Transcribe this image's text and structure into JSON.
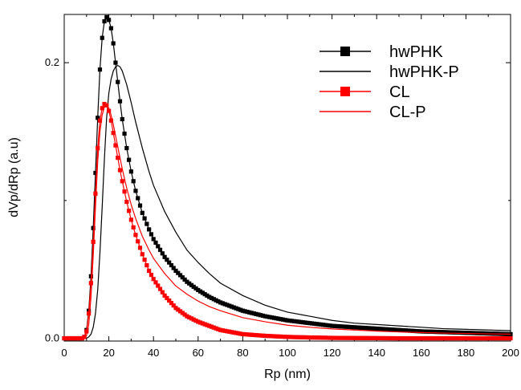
{
  "chart_data": {
    "type": "scatter",
    "title": "",
    "xlabel": "Rp (nm)",
    "ylabel": "dVp/dRp (a.u)",
    "xlim": [
      0,
      200
    ],
    "ylim": [
      -0.002,
      0.235
    ],
    "x_ticks": [
      0,
      20,
      40,
      60,
      80,
      100,
      120,
      140,
      160,
      180,
      200
    ],
    "y_ticks": [
      0.0,
      0.2
    ],
    "x_tick_labels": [
      "0",
      "20",
      "40",
      "60",
      "80",
      "100",
      "120",
      "140",
      "160",
      "180",
      "200"
    ],
    "y_tick_labels": [
      "0.0",
      "0.2"
    ],
    "grid": false,
    "legend_position": "top-right",
    "x": [
      0,
      2,
      4,
      6,
      8,
      9,
      10,
      11,
      12,
      13,
      14,
      15,
      16,
      17,
      18,
      19,
      20,
      21,
      22,
      23,
      24,
      25,
      26,
      28,
      30,
      32,
      35,
      38,
      40,
      45,
      50,
      55,
      60,
      65,
      70,
      80,
      90,
      100,
      110,
      120,
      130,
      140,
      150,
      160,
      170,
      180,
      190,
      200
    ],
    "series": [
      {
        "name": "hwPHK",
        "style": "line-square-markers",
        "color": "#000000",
        "values": [
          0,
          0,
          0,
          0,
          0,
          0.001,
          0.006,
          0.02,
          0.045,
          0.08,
          0.12,
          0.16,
          0.195,
          0.218,
          0.23,
          0.233,
          0.231,
          0.225,
          0.214,
          0.2,
          0.186,
          0.172,
          0.159,
          0.138,
          0.121,
          0.107,
          0.091,
          0.079,
          0.072,
          0.059,
          0.049,
          0.041,
          0.035,
          0.03,
          0.026,
          0.02,
          0.016,
          0.013,
          0.011,
          0.009,
          0.008,
          0.007,
          0.006,
          0.005,
          0.0045,
          0.004,
          0.0035,
          0.003
        ]
      },
      {
        "name": "hwPHK-P",
        "style": "line",
        "color": "#000000",
        "values": [
          0,
          0,
          0,
          0,
          0,
          0,
          0,
          0.001,
          0.003,
          0.008,
          0.018,
          0.035,
          0.062,
          0.095,
          0.13,
          0.16,
          0.178,
          0.188,
          0.194,
          0.197,
          0.198,
          0.197,
          0.194,
          0.184,
          0.171,
          0.157,
          0.138,
          0.121,
          0.111,
          0.092,
          0.077,
          0.064,
          0.055,
          0.047,
          0.04,
          0.031,
          0.024,
          0.019,
          0.016,
          0.013,
          0.011,
          0.01,
          0.009,
          0.008,
          0.007,
          0.0065,
          0.006,
          0.0055
        ]
      },
      {
        "name": "CL",
        "style": "line-square-markers",
        "color": "#ff0000",
        "values": [
          0,
          0,
          0,
          0,
          0,
          0.001,
          0.005,
          0.018,
          0.04,
          0.07,
          0.105,
          0.138,
          0.158,
          0.167,
          0.17,
          0.169,
          0.165,
          0.158,
          0.149,
          0.14,
          0.131,
          0.122,
          0.114,
          0.099,
          0.086,
          0.075,
          0.061,
          0.049,
          0.043,
          0.031,
          0.022,
          0.016,
          0.012,
          0.009,
          0.006,
          0.003,
          0.0018,
          0.001,
          0.0006,
          0.0003,
          0.0002,
          0.0001,
          0,
          0,
          0,
          0,
          0,
          0
        ]
      },
      {
        "name": "CL-P",
        "style": "line",
        "color": "#ff0000",
        "values": [
          0,
          0,
          0,
          0,
          0,
          0,
          0.002,
          0.01,
          0.03,
          0.06,
          0.095,
          0.128,
          0.15,
          0.162,
          0.168,
          0.169,
          0.167,
          0.162,
          0.155,
          0.147,
          0.139,
          0.131,
          0.123,
          0.109,
          0.097,
          0.087,
          0.074,
          0.064,
          0.058,
          0.047,
          0.038,
          0.032,
          0.027,
          0.023,
          0.02,
          0.015,
          0.012,
          0.0095,
          0.008,
          0.0068,
          0.006,
          0.0052,
          0.0046,
          0.0042,
          0.0038,
          0.0035,
          0.0032,
          0.003
        ]
      }
    ]
  }
}
